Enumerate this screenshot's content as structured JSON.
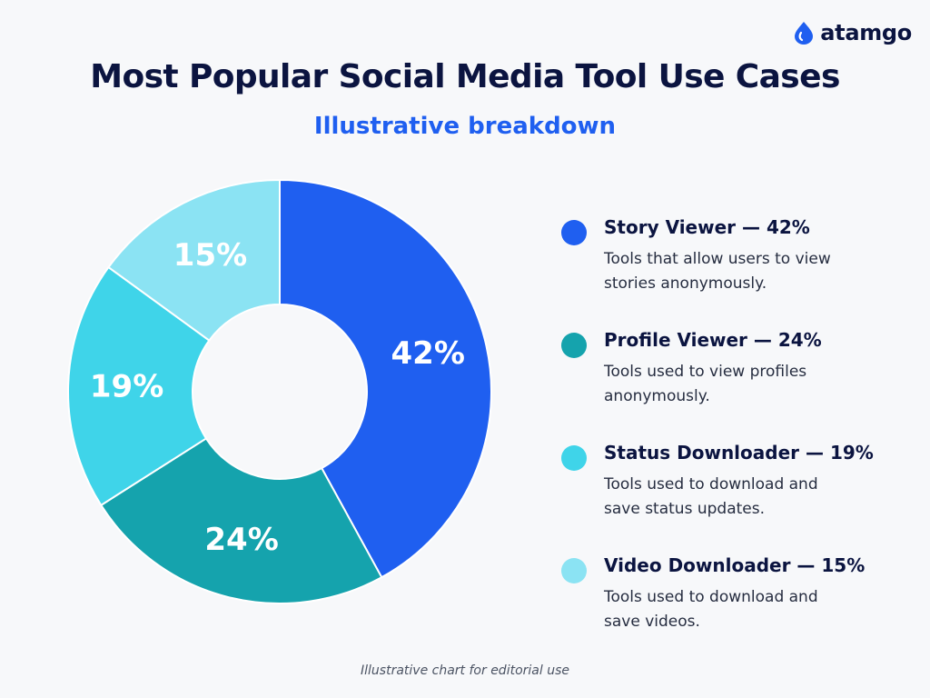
{
  "brand": {
    "name": "atamgo",
    "icon": "droplet-logo-icon",
    "color": "#1f5ff0"
  },
  "header": {
    "title": "Most Popular Social Media Tool Use Cases",
    "subtitle": "Illustrative breakdown"
  },
  "chart_data": {
    "type": "pie",
    "style": "donut",
    "title": "Most Popular Social Media Tool Use Cases",
    "subtitle": "Illustrative breakdown",
    "start_angle_deg": 0,
    "direction": "clockwise",
    "legend_position": "right",
    "slices": [
      {
        "label": "Story Viewer",
        "value": 42,
        "display": "42%",
        "color": "#1f5ff0",
        "description": "Tools that allow users to view stories anonymously."
      },
      {
        "label": "Profile Viewer",
        "value": 24,
        "display": "24%",
        "color": "#15a3ad",
        "description": "Tools used to view profiles anonymously."
      },
      {
        "label": "Status Downloader",
        "value": 19,
        "display": "19%",
        "color": "#3fd4e9",
        "description": "Tools used to download and save status updates."
      },
      {
        "label": "Video Downloader",
        "value": 15,
        "display": "15%",
        "color": "#8be3f3",
        "description": "Tools used to download and save videos."
      }
    ]
  },
  "legend": {
    "items": [
      {
        "title": "Story Viewer — 42%",
        "description": "Tools that allow users to view stories anonymously."
      },
      {
        "title": "Profile Viewer — 24%",
        "description": "Tools used to view profiles anonymously."
      },
      {
        "title": "Status Downloader — 19%",
        "description": "Tools used to download and save status updates."
      },
      {
        "title": "Video Downloader — 15%",
        "description": "Tools used to download and save videos."
      }
    ]
  },
  "footer": {
    "note": "Illustrative chart for editorial use"
  }
}
